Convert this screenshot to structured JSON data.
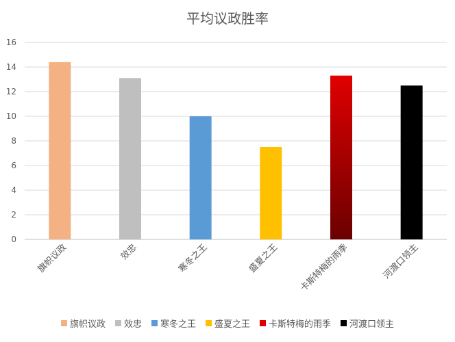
{
  "chart_data": {
    "type": "bar",
    "title": "平均议政胜率",
    "xlabel": "",
    "ylabel": "",
    "ylim": [
      0,
      16
    ],
    "yticks": [
      0,
      2,
      4,
      6,
      8,
      10,
      12,
      14,
      16
    ],
    "grid": true,
    "legend_position": "bottom",
    "categories": [
      "旗帜议政",
      "效忠",
      "寒冬之王",
      "盛夏之王",
      "卡斯特梅的雨季",
      "河渡口领主"
    ],
    "values": [
      14.4,
      13.1,
      10.0,
      7.5,
      13.3,
      12.5
    ],
    "colors": [
      "#F4B183",
      "#BFBFBF",
      "#5B9BD5",
      "#FFC000",
      "gradient-red",
      "#000000"
    ],
    "gradient": {
      "top": "#E00000",
      "bottom": "#6B0000"
    }
  }
}
